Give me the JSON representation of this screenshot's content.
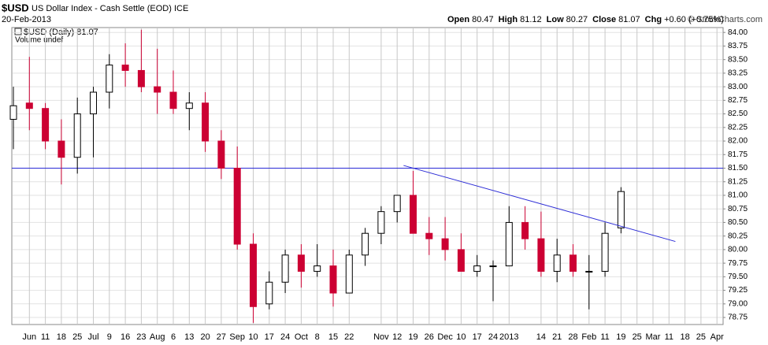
{
  "chart_data": {
    "type": "candlestick",
    "symbol": "$USD",
    "title": "US Dollar Index - Cash Settle (EOD) ICE",
    "date": "20-Feb-2013",
    "copyright": "© StockCharts.com",
    "stats": [
      {
        "label": "Open",
        "value": "80.47"
      },
      {
        "label": "High",
        "value": "81.12"
      },
      {
        "label": "Low",
        "value": "80.27"
      },
      {
        "label": "Close",
        "value": "81.07"
      },
      {
        "label": "Chg",
        "value": "+0.60 (+0.75%)"
      }
    ],
    "volume_note": "Volume undef",
    "categories": [
      null,
      "Jun",
      "11",
      "18",
      "25",
      "Jul",
      "9",
      "16",
      "23",
      "Aug",
      "6",
      "13",
      "20",
      "27",
      "Sep",
      "10",
      "17",
      "24",
      "Oct",
      "8",
      "15",
      "22",
      null,
      "Nov",
      "12",
      "19",
      "26",
      "Dec",
      "10",
      "17",
      "24",
      "2013",
      null,
      "14",
      "21",
      "28",
      "Feb",
      "11",
      "19",
      "25",
      "Mar",
      "11",
      "18",
      "25",
      "Apr"
    ],
    "series": [
      {
        "name": "$USD (Daily) 81.07",
        "up_color": "#000000",
        "down_color": "#cc0033",
        "open": [
          82.4,
          82.7,
          82.6,
          82.0,
          81.7,
          82.5,
          82.9,
          83.4,
          83.3,
          83.0,
          82.9,
          82.6,
          82.7,
          82.0,
          81.5,
          80.1,
          79.0,
          79.4,
          79.9,
          79.6,
          79.7,
          79.2,
          79.9,
          80.3,
          80.7,
          81.0,
          80.3,
          80.2,
          80.0,
          79.6,
          79.7,
          79.7,
          80.5,
          80.2,
          79.6,
          79.9,
          79.6,
          79.6,
          80.4,
          null,
          null,
          null,
          null,
          null,
          null
        ],
        "high": [
          83.0,
          83.55,
          82.7,
          82.4,
          82.8,
          83.0,
          83.6,
          83.8,
          84.05,
          83.7,
          83.3,
          82.9,
          82.9,
          82.2,
          81.9,
          80.3,
          79.6,
          80.0,
          80.1,
          80.1,
          80.0,
          80.0,
          80.4,
          80.8,
          81.0,
          81.45,
          80.6,
          80.6,
          80.3,
          79.9,
          79.8,
          80.8,
          80.8,
          80.7,
          80.2,
          80.1,
          79.9,
          80.5,
          81.15,
          null,
          null,
          null,
          null,
          null,
          null
        ],
        "low": [
          81.85,
          82.2,
          81.85,
          81.2,
          81.4,
          81.7,
          82.6,
          83.0,
          82.9,
          82.5,
          82.5,
          82.2,
          81.8,
          81.3,
          80.0,
          78.65,
          78.9,
          79.2,
          79.3,
          79.5,
          78.95,
          79.2,
          79.7,
          80.1,
          80.5,
          80.3,
          79.9,
          79.8,
          79.6,
          79.5,
          79.05,
          79.7,
          80.0,
          79.5,
          79.4,
          79.5,
          78.9,
          79.5,
          80.3,
          null,
          null,
          null,
          null,
          null,
          null
        ],
        "close": [
          82.65,
          82.6,
          82.0,
          81.7,
          82.5,
          82.9,
          83.4,
          83.3,
          83.0,
          82.9,
          82.6,
          82.7,
          82.0,
          81.5,
          80.1,
          78.95,
          79.4,
          79.9,
          79.6,
          79.7,
          79.2,
          79.9,
          80.3,
          80.7,
          81.0,
          80.3,
          80.2,
          80.0,
          79.6,
          79.7,
          79.7,
          80.5,
          80.2,
          79.6,
          79.9,
          79.6,
          79.6,
          80.3,
          81.07,
          null,
          null,
          null,
          null,
          null,
          null
        ]
      }
    ],
    "hline": {
      "value": 81.5,
      "color": "#2b2bd6"
    },
    "trendline": {
      "from": [
        24.4,
        81.55
      ],
      "to": [
        41.4,
        80.15
      ],
      "color": "#2b2bd6"
    },
    "ylim": [
      78.62,
      84.09
    ],
    "yticks": [
      78.75,
      {
        "value": 79,
        "label": "79.00"
      },
      79.25,
      {
        "value": 79.5,
        "label": "79.50"
      },
      79.75,
      {
        "value": 80,
        "label": "80.00"
      },
      80.25,
      {
        "value": 80.5,
        "label": "80.50"
      },
      80.75,
      {
        "value": 81,
        "label": "81.00"
      },
      81.25,
      {
        "value": 81.5,
        "label": "81.50"
      },
      81.75,
      {
        "value": 82,
        "label": "82.00"
      },
      82.25,
      {
        "value": 82.5,
        "label": "82.50"
      },
      82.75,
      {
        "value": 83,
        "label": "83.00"
      },
      83.25,
      {
        "value": 83.5,
        "label": "83.50"
      },
      83.75,
      {
        "value": 84,
        "label": "84.00"
      }
    ],
    "grid": true
  }
}
